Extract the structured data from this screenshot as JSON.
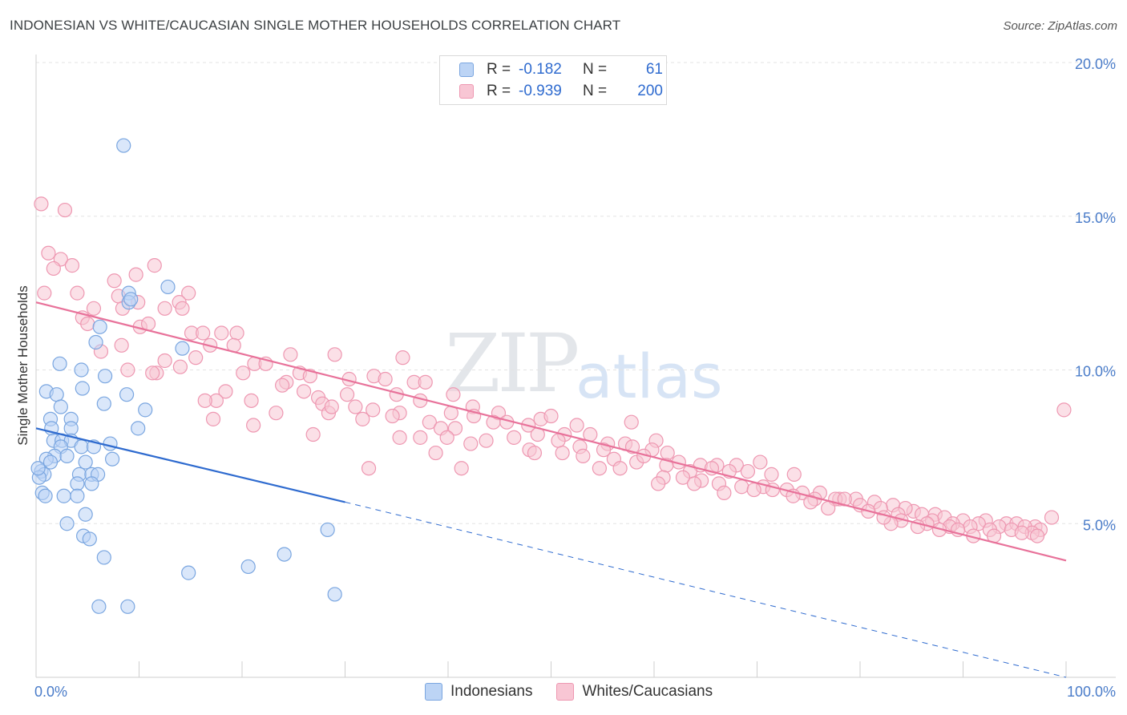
{
  "title": "INDONESIAN VS WHITE/CAUCASIAN SINGLE MOTHER HOUSEHOLDS CORRELATION CHART",
  "source": "Source: ZipAtlas.com",
  "watermark": {
    "zip": "ZIP",
    "atlas": "atlas"
  },
  "legend": {
    "r_label": "R =",
    "n_label": "N =",
    "rows": [
      {
        "r": "-0.182",
        "n": "61"
      },
      {
        "r": "-0.939",
        "n": "200"
      }
    ]
  },
  "bottom_legend": [
    "Indonesians",
    "Whites/Caucasians"
  ],
  "colors": {
    "blue_fill": "#bcd4f5",
    "blue_stroke": "#7aa6e0",
    "blue_line": "#2f6bcf",
    "pink_fill": "#f8c6d4",
    "pink_stroke": "#ee97b1",
    "pink_line": "#e8729a"
  },
  "chart_data": {
    "type": "scatter",
    "xlabel": "",
    "ylabel": "Single Mother Households",
    "xlim": [
      0,
      100
    ],
    "ylim": [
      0,
      20
    ],
    "x_tick_labels": [
      "0.0%",
      "100.0%"
    ],
    "y_ticks": [
      5,
      10,
      15,
      20
    ],
    "y_tick_labels": [
      "5.0%",
      "10.0%",
      "15.0%",
      "20.0%"
    ],
    "grid": true,
    "series": [
      {
        "name": "Indonesians",
        "points": [
          [
            8.5,
            17.3
          ],
          [
            12.8,
            12.7
          ],
          [
            9.0,
            12.5
          ],
          [
            9.0,
            12.2
          ],
          [
            9.2,
            12.3
          ],
          [
            6.2,
            11.4
          ],
          [
            14.2,
            10.7
          ],
          [
            5.8,
            10.9
          ],
          [
            2.3,
            10.2
          ],
          [
            4.4,
            10.0
          ],
          [
            6.7,
            9.8
          ],
          [
            4.5,
            9.4
          ],
          [
            1.0,
            9.3
          ],
          [
            2.0,
            9.2
          ],
          [
            8.8,
            9.2
          ],
          [
            6.6,
            8.9
          ],
          [
            2.4,
            8.8
          ],
          [
            10.6,
            8.7
          ],
          [
            1.4,
            8.4
          ],
          [
            3.4,
            8.4
          ],
          [
            1.5,
            8.1
          ],
          [
            3.4,
            8.1
          ],
          [
            9.9,
            8.1
          ],
          [
            1.7,
            7.7
          ],
          [
            2.5,
            7.7
          ],
          [
            3.4,
            7.7
          ],
          [
            7.2,
            7.6
          ],
          [
            2.4,
            7.5
          ],
          [
            4.4,
            7.5
          ],
          [
            5.6,
            7.5
          ],
          [
            1.8,
            7.2
          ],
          [
            1.0,
            7.1
          ],
          [
            1.4,
            7.0
          ],
          [
            3.0,
            7.2
          ],
          [
            7.4,
            7.1
          ],
          [
            4.8,
            7.0
          ],
          [
            0.5,
            6.7
          ],
          [
            0.8,
            6.6
          ],
          [
            4.2,
            6.6
          ],
          [
            5.4,
            6.6
          ],
          [
            6.0,
            6.6
          ],
          [
            0.3,
            6.5
          ],
          [
            4.0,
            6.3
          ],
          [
            5.4,
            6.3
          ],
          [
            0.6,
            6.0
          ],
          [
            0.9,
            5.9
          ],
          [
            2.7,
            5.9
          ],
          [
            4.0,
            5.9
          ],
          [
            4.8,
            5.3
          ],
          [
            3.0,
            5.0
          ],
          [
            4.6,
            4.6
          ],
          [
            5.2,
            4.5
          ],
          [
            28.3,
            4.8
          ],
          [
            6.6,
            3.9
          ],
          [
            24.1,
            4.0
          ],
          [
            14.8,
            3.4
          ],
          [
            20.6,
            3.6
          ],
          [
            29.0,
            2.7
          ],
          [
            6.1,
            2.3
          ],
          [
            8.9,
            2.3
          ],
          [
            0.2,
            6.8
          ]
        ]
      },
      {
        "name": "Whites/Caucasians",
        "points": [
          [
            0.5,
            15.4
          ],
          [
            2.8,
            15.2
          ],
          [
            1.2,
            13.8
          ],
          [
            2.4,
            13.6
          ],
          [
            1.7,
            13.3
          ],
          [
            3.5,
            13.4
          ],
          [
            11.5,
            13.4
          ],
          [
            9.7,
            13.1
          ],
          [
            7.6,
            12.9
          ],
          [
            0.8,
            12.5
          ],
          [
            4.0,
            12.5
          ],
          [
            8.0,
            12.4
          ],
          [
            14.8,
            12.5
          ],
          [
            5.6,
            12.0
          ],
          [
            9.9,
            12.2
          ],
          [
            13.9,
            12.2
          ],
          [
            12.5,
            12.0
          ],
          [
            14.2,
            12.0
          ],
          [
            8.4,
            12.0
          ],
          [
            4.5,
            11.7
          ],
          [
            5.0,
            11.5
          ],
          [
            10.1,
            11.4
          ],
          [
            10.9,
            11.5
          ],
          [
            15.1,
            11.2
          ],
          [
            16.2,
            11.2
          ],
          [
            18.0,
            11.2
          ],
          [
            19.5,
            11.2
          ],
          [
            16.9,
            10.8
          ],
          [
            19.2,
            10.8
          ],
          [
            8.3,
            10.8
          ],
          [
            6.3,
            10.6
          ],
          [
            15.5,
            10.4
          ],
          [
            24.7,
            10.5
          ],
          [
            29.0,
            10.5
          ],
          [
            12.5,
            10.3
          ],
          [
            14.0,
            10.1
          ],
          [
            21.2,
            10.2
          ],
          [
            22.3,
            10.2
          ],
          [
            35.6,
            10.4
          ],
          [
            8.9,
            10.0
          ],
          [
            11.7,
            9.9
          ],
          [
            20.1,
            9.9
          ],
          [
            25.6,
            9.9
          ],
          [
            26.6,
            9.8
          ],
          [
            30.4,
            9.7
          ],
          [
            32.8,
            9.8
          ],
          [
            33.9,
            9.7
          ],
          [
            24.3,
            9.6
          ],
          [
            23.9,
            9.5
          ],
          [
            36.7,
            9.6
          ],
          [
            37.8,
            9.6
          ],
          [
            18.4,
            9.3
          ],
          [
            26.0,
            9.3
          ],
          [
            30.2,
            9.2
          ],
          [
            35.0,
            9.2
          ],
          [
            40.5,
            9.2
          ],
          [
            37.3,
            9.0
          ],
          [
            17.5,
            9.0
          ],
          [
            27.4,
            9.1
          ],
          [
            27.8,
            8.9
          ],
          [
            31.0,
            8.8
          ],
          [
            23.3,
            8.6
          ],
          [
            28.4,
            8.6
          ],
          [
            28.7,
            8.8
          ],
          [
            32.7,
            8.7
          ],
          [
            35.3,
            8.6
          ],
          [
            40.3,
            8.6
          ],
          [
            42.4,
            8.8
          ],
          [
            44.9,
            8.6
          ],
          [
            21.1,
            8.2
          ],
          [
            31.7,
            8.4
          ],
          [
            34.6,
            8.5
          ],
          [
            38.2,
            8.3
          ],
          [
            39.3,
            8.1
          ],
          [
            40.7,
            8.1
          ],
          [
            42.5,
            8.5
          ],
          [
            44.4,
            8.3
          ],
          [
            45.7,
            8.3
          ],
          [
            47.8,
            8.2
          ],
          [
            49.0,
            8.4
          ],
          [
            50.0,
            8.5
          ],
          [
            52.5,
            8.2
          ],
          [
            57.8,
            8.3
          ],
          [
            17.2,
            8.4
          ],
          [
            26.9,
            7.9
          ],
          [
            35.3,
            7.8
          ],
          [
            37.3,
            7.8
          ],
          [
            39.9,
            7.8
          ],
          [
            43.7,
            7.7
          ],
          [
            46.4,
            7.8
          ],
          [
            48.7,
            7.9
          ],
          [
            51.3,
            7.9
          ],
          [
            53.8,
            7.9
          ],
          [
            55.5,
            7.6
          ],
          [
            57.2,
            7.6
          ],
          [
            60.2,
            7.7
          ],
          [
            42.2,
            7.6
          ],
          [
            47.9,
            7.4
          ],
          [
            50.7,
            7.7
          ],
          [
            52.8,
            7.5
          ],
          [
            55.1,
            7.4
          ],
          [
            57.9,
            7.5
          ],
          [
            59.8,
            7.4
          ],
          [
            38.8,
            7.3
          ],
          [
            48.4,
            7.3
          ],
          [
            51.1,
            7.3
          ],
          [
            53.1,
            7.2
          ],
          [
            56.1,
            7.1
          ],
          [
            58.3,
            7.0
          ],
          [
            59.0,
            7.2
          ],
          [
            61.3,
            7.3
          ],
          [
            62.4,
            7.0
          ],
          [
            64.5,
            6.9
          ],
          [
            66.1,
            6.9
          ],
          [
            68.0,
            6.9
          ],
          [
            70.3,
            7.0
          ],
          [
            61.2,
            6.9
          ],
          [
            63.5,
            6.7
          ],
          [
            65.6,
            6.8
          ],
          [
            67.3,
            6.7
          ],
          [
            69.1,
            6.7
          ],
          [
            71.4,
            6.6
          ],
          [
            73.6,
            6.6
          ],
          [
            32.3,
            6.8
          ],
          [
            41.3,
            6.8
          ],
          [
            54.7,
            6.8
          ],
          [
            56.7,
            6.8
          ],
          [
            60.9,
            6.5
          ],
          [
            62.8,
            6.5
          ],
          [
            64.6,
            6.4
          ],
          [
            66.3,
            6.3
          ],
          [
            68.5,
            6.2
          ],
          [
            70.6,
            6.2
          ],
          [
            72.9,
            6.1
          ],
          [
            74.4,
            6.0
          ],
          [
            76.1,
            6.0
          ],
          [
            78.0,
            5.8
          ],
          [
            60.4,
            6.3
          ],
          [
            63.9,
            6.3
          ],
          [
            66.8,
            6.0
          ],
          [
            69.7,
            6.1
          ],
          [
            71.5,
            6.1
          ],
          [
            73.5,
            5.9
          ],
          [
            75.6,
            5.8
          ],
          [
            77.6,
            5.8
          ],
          [
            79.6,
            5.8
          ],
          [
            81.4,
            5.7
          ],
          [
            83.2,
            5.6
          ],
          [
            85.2,
            5.4
          ],
          [
            87.3,
            5.3
          ],
          [
            78.5,
            5.8
          ],
          [
            80.0,
            5.6
          ],
          [
            82.0,
            5.5
          ],
          [
            84.4,
            5.5
          ],
          [
            86.0,
            5.3
          ],
          [
            88.2,
            5.2
          ],
          [
            90.0,
            5.1
          ],
          [
            92.2,
            5.1
          ],
          [
            94.2,
            5.0
          ],
          [
            95.2,
            5.0
          ],
          [
            97.0,
            4.9
          ],
          [
            98.6,
            5.2
          ],
          [
            80.8,
            5.4
          ],
          [
            83.7,
            5.3
          ],
          [
            87.0,
            5.1
          ],
          [
            89.0,
            5.0
          ],
          [
            91.5,
            5.0
          ],
          [
            93.5,
            4.9
          ],
          [
            96.0,
            4.9
          ],
          [
            97.5,
            4.8
          ],
          [
            84.0,
            5.1
          ],
          [
            86.5,
            5.0
          ],
          [
            88.7,
            4.9
          ],
          [
            90.7,
            4.9
          ],
          [
            92.6,
            4.8
          ],
          [
            94.7,
            4.8
          ],
          [
            96.7,
            4.7
          ],
          [
            83.0,
            5.0
          ],
          [
            85.6,
            4.9
          ],
          [
            87.7,
            4.8
          ],
          [
            89.5,
            4.8
          ],
          [
            91.0,
            4.6
          ],
          [
            93.0,
            4.6
          ],
          [
            95.7,
            4.7
          ],
          [
            97.2,
            4.6
          ],
          [
            82.3,
            5.2
          ],
          [
            76.9,
            5.5
          ],
          [
            75.2,
            5.7
          ],
          [
            99.8,
            8.7
          ],
          [
            11.3,
            9.9
          ],
          [
            16.4,
            9.0
          ],
          [
            20.9,
            9.0
          ]
        ]
      }
    ],
    "trendlines": [
      {
        "series": "Indonesians",
        "from": [
          0,
          8.1
        ],
        "to": [
          30,
          5.7
        ],
        "dashed_extension_to": [
          100,
          0.0
        ]
      },
      {
        "series": "Whites/Caucasians",
        "from": [
          0,
          12.2
        ],
        "to": [
          100,
          3.8
        ]
      }
    ]
  }
}
